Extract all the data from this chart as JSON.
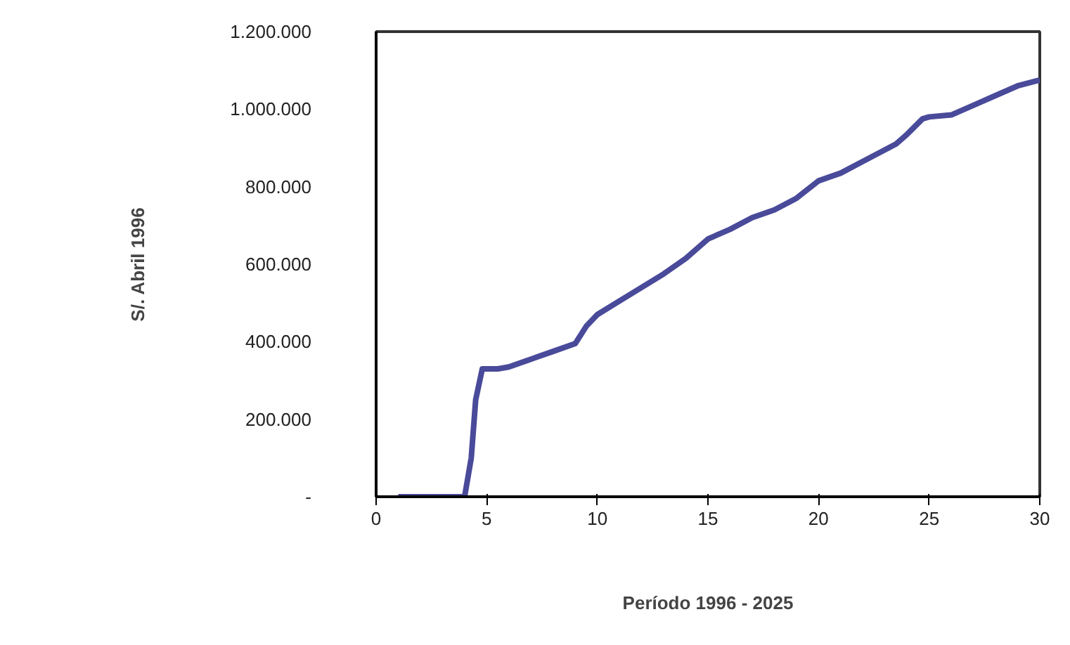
{
  "chart_data": {
    "type": "line",
    "xlabel": "Período 1996 - 2025",
    "ylabel": "S/. Abril 1996",
    "x": [
      1,
      3,
      3.7,
      4,
      4.3,
      4.5,
      4.8,
      5.5,
      6,
      7,
      8,
      9,
      9.5,
      10,
      11,
      12,
      13,
      14,
      15,
      16,
      17,
      18,
      19,
      20,
      21,
      22,
      23,
      23.5,
      24,
      24.7,
      25,
      26,
      27,
      28,
      29,
      30
    ],
    "series": [
      {
        "color": "#4a4a9a",
        "values": [
          0,
          0,
          0,
          0,
          100000,
          250000,
          330000,
          330000,
          335000,
          355000,
          375000,
          395000,
          440000,
          470000,
          505000,
          540000,
          575000,
          615000,
          665000,
          690000,
          720000,
          740000,
          770000,
          815000,
          835000,
          865000,
          895000,
          910000,
          935000,
          975000,
          980000,
          985000,
          1010000,
          1035000,
          1060000,
          1075000
        ]
      }
    ],
    "xlim": [
      0,
      30
    ],
    "xticks": [
      0,
      5,
      10,
      15,
      20,
      25,
      30
    ],
    "ylim": [
      0,
      1200000
    ],
    "yticks": [
      {
        "value": 0,
        "label": "-"
      },
      {
        "value": 200000,
        "label": "200.000"
      },
      {
        "value": 400000,
        "label": "400.000"
      },
      {
        "value": 600000,
        "label": "600.000"
      },
      {
        "value": 800000,
        "label": "800.000"
      },
      {
        "value": 1000000,
        "label": "1.000.000"
      },
      {
        "value": 1200000,
        "label": "1.200.000"
      }
    ],
    "grid": false,
    "marker": "none",
    "line_style": "solid"
  }
}
